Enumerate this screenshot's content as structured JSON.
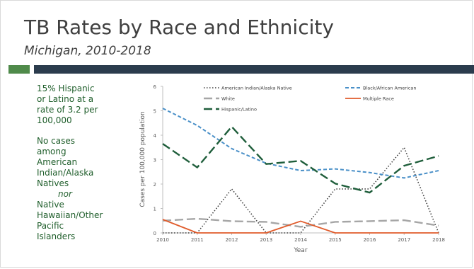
{
  "slide": {
    "title": "TB Rates by Race and Ethnicity",
    "subtitle": "Michigan, 2010-2018",
    "notes": {
      "line1": "15% Hispanic or Latino at a rate of 3.2 per 100,000",
      "line2": "No cases among American Indian/Alaska Natives",
      "nor": "nor",
      "line3": "Native Hawaiian/Other Pacific Islanders"
    }
  },
  "colors": {
    "band_green": "#4f8a4a",
    "band_dark": "#2b3c4d",
    "note_text": "#1f5e2b"
  },
  "chart_data": {
    "type": "line",
    "x": [
      2010,
      2011,
      2012,
      2013,
      2014,
      2015,
      2016,
      2017,
      2018
    ],
    "xlabel": "Year",
    "ylabel": "Cases per 100,000 population",
    "ylim": [
      0,
      6
    ],
    "yticks": [
      0,
      1,
      2,
      3,
      4,
      5,
      6
    ],
    "grid": false,
    "legend_position": "top",
    "series": [
      {
        "name": "American Indian/Alaska Native",
        "color": "#404040",
        "dash": "dotted",
        "values": [
          0,
          0,
          1.8,
          0,
          0,
          1.8,
          1.8,
          3.5,
          0
        ]
      },
      {
        "name": "Black/African American",
        "color": "#4a90c8",
        "dash": "dashed",
        "values": [
          5.1,
          4.4,
          3.45,
          2.85,
          2.55,
          2.62,
          2.47,
          2.25,
          2.55
        ]
      },
      {
        "name": "White",
        "color": "#a6a6a6",
        "dash": "longdash",
        "values": [
          0.5,
          0.58,
          0.48,
          0.45,
          0.25,
          0.45,
          0.48,
          0.52,
          0.3
        ]
      },
      {
        "name": "Multiple Race",
        "color": "#e05b2b",
        "dash": "solid",
        "values": [
          0.55,
          0,
          0,
          0,
          0.48,
          0,
          0,
          0,
          0
        ]
      },
      {
        "name": "Hispanic/Latino",
        "color": "#1f5e3b",
        "dash": "longdash",
        "values": [
          3.65,
          2.68,
          4.35,
          2.82,
          2.95,
          2.02,
          1.65,
          2.75,
          3.15
        ]
      }
    ]
  }
}
